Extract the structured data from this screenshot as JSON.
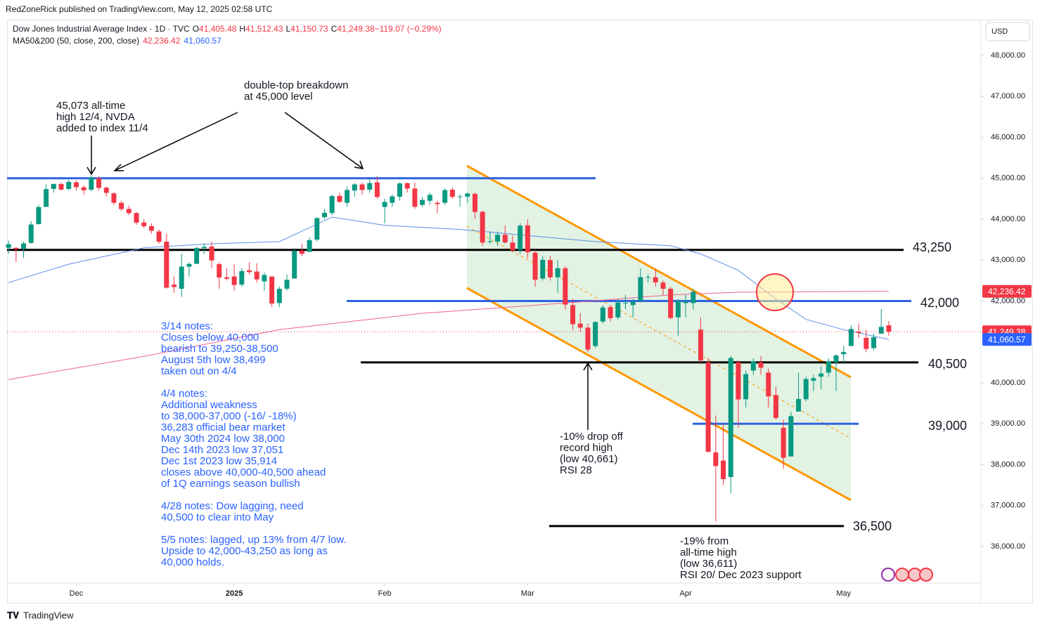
{
  "chart_data": {
    "type": "candlestick",
    "publisher": "RedZoneRick published on TradingView.com, May 12, 2025 02:58 UTC",
    "title": "Dow Jones Industrial Average Index · 1D · TVC",
    "legend_values": [
      {
        "key": "O",
        "text": "41,405.48"
      },
      {
        "key": "H",
        "text": "41,512.43"
      },
      {
        "key": "L",
        "text": "41,150.73"
      },
      {
        "key": "C",
        "text": "41,249.38"
      },
      {
        "key": "",
        "text": "−119.07 (−0.29%)"
      }
    ],
    "ma_legend": "MA50&200 (50, close, 200, close)",
    "ma_legend_values": [
      "42,236.42",
      "41,060.57"
    ],
    "currency": "USD",
    "brand": "TradingView",
    "up_color": "#089981",
    "down_color": "#f23645",
    "ohlc": [
      [
        43300,
        43480,
        43150,
        43390
      ],
      [
        43300,
        43320,
        42950,
        43268
      ],
      [
        43280,
        43450,
        43050,
        43408
      ],
      [
        43420,
        43950,
        43400,
        43870
      ],
      [
        43880,
        44350,
        43870,
        44296
      ],
      [
        44300,
        44850,
        44300,
        44736
      ],
      [
        44740,
        44870,
        44650,
        44860
      ],
      [
        44860,
        44900,
        44700,
        44722
      ],
      [
        44740,
        44960,
        44700,
        44910
      ],
      [
        44900,
        44950,
        44700,
        44782
      ],
      [
        44780,
        44830,
        44600,
        44705
      ],
      [
        44720,
        45073,
        44680,
        45014
      ],
      [
        45000,
        45050,
        44700,
        44765
      ],
      [
        44770,
        44800,
        44550,
        44643
      ],
      [
        44630,
        44660,
        44350,
        44401
      ],
      [
        44400,
        44450,
        44200,
        44247
      ],
      [
        44250,
        44330,
        44100,
        44148
      ],
      [
        44150,
        44170,
        43860,
        43914
      ],
      [
        43920,
        44000,
        43780,
        43828
      ],
      [
        43830,
        43900,
        43650,
        43717
      ],
      [
        43700,
        43750,
        43400,
        43449
      ],
      [
        43450,
        43650,
        42300,
        42326
      ],
      [
        42400,
        42600,
        42200,
        42342
      ],
      [
        42300,
        43150,
        42100,
        42840
      ],
      [
        42840,
        42950,
        42600,
        42906
      ],
      [
        42910,
        43320,
        42900,
        43297
      ],
      [
        43290,
        43400,
        43150,
        43325
      ],
      [
        43330,
        43450,
        42800,
        42992
      ],
      [
        42900,
        42950,
        42300,
        42573
      ],
      [
        42580,
        42800,
        42500,
        42544
      ],
      [
        42600,
        42900,
        42250,
        42392
      ],
      [
        42400,
        42800,
        42350,
        42732
      ],
      [
        42750,
        42950,
        42650,
        42706
      ],
      [
        42720,
        42920,
        42450,
        42528
      ],
      [
        42480,
        42700,
        42250,
        42635
      ],
      [
        42600,
        42600,
        41850,
        41938
      ],
      [
        41950,
        42350,
        41850,
        42297
      ],
      [
        42300,
        42650,
        42250,
        42518
      ],
      [
        42550,
        43300,
        42550,
        43221
      ],
      [
        43230,
        43400,
        43100,
        43153
      ],
      [
        43200,
        43550,
        43200,
        43487
      ],
      [
        43500,
        44050,
        43450,
        44025
      ],
      [
        44050,
        44250,
        44000,
        44156
      ],
      [
        44150,
        44600,
        44100,
        44565
      ],
      [
        44570,
        44650,
        44400,
        44424
      ],
      [
        44400,
        44800,
        44300,
        44713
      ],
      [
        44700,
        44880,
        44550,
        44850
      ],
      [
        44850,
        44900,
        44600,
        44713
      ],
      [
        44720,
        45000,
        44650,
        44882
      ],
      [
        44900,
        45050,
        44500,
        44544
      ],
      [
        44300,
        44500,
        43900,
        44421
      ],
      [
        44400,
        44600,
        44300,
        44556
      ],
      [
        44550,
        44900,
        44450,
        44873
      ],
      [
        44880,
        44900,
        44650,
        44747
      ],
      [
        44750,
        44900,
        44250,
        44303
      ],
      [
        44350,
        44550,
        44300,
        44470
      ],
      [
        44450,
        44650,
        44350,
        44593
      ],
      [
        44400,
        44450,
        44150,
        44368
      ],
      [
        44400,
        44750,
        44350,
        44711
      ],
      [
        44720,
        44780,
        44500,
        44546
      ],
      [
        44550,
        44600,
        44300,
        44556
      ],
      [
        44550,
        44650,
        44400,
        44627
      ],
      [
        44620,
        44650,
        44000,
        44176
      ],
      [
        44180,
        44200,
        43350,
        43428
      ],
      [
        43450,
        43700,
        43400,
        43461
      ],
      [
        43450,
        43700,
        43350,
        43621
      ],
      [
        43620,
        43850,
        43400,
        43433
      ],
      [
        43430,
        43600,
        43200,
        43239
      ],
      [
        43250,
        43900,
        43150,
        43841
      ],
      [
        43850,
        44000,
        43050,
        43191
      ],
      [
        43180,
        43250,
        42350,
        42520
      ],
      [
        42550,
        43100,
        42500,
        43006
      ],
      [
        43000,
        43100,
        42500,
        42579
      ],
      [
        42580,
        43000,
        42200,
        42802
      ],
      [
        42800,
        42850,
        41800,
        41912
      ],
      [
        41900,
        42050,
        41300,
        41433
      ],
      [
        41450,
        41700,
        41250,
        41350
      ],
      [
        41350,
        41450,
        40750,
        40813
      ],
      [
        40900,
        41500,
        40850,
        41488
      ],
      [
        41500,
        41900,
        41450,
        41841
      ],
      [
        41850,
        41900,
        41500,
        41581
      ],
      [
        41600,
        42050,
        41550,
        41964
      ],
      [
        41950,
        42150,
        41800,
        41953
      ],
      [
        41900,
        42050,
        41600,
        41985
      ],
      [
        42000,
        42800,
        42000,
        42583
      ],
      [
        42580,
        42650,
        42450,
        42587
      ],
      [
        42580,
        42800,
        42350,
        42455
      ],
      [
        42450,
        42500,
        42150,
        42300
      ],
      [
        42300,
        42350,
        41550,
        41584
      ],
      [
        41600,
        42050,
        41150,
        42002
      ],
      [
        41950,
        42150,
        41600,
        41989
      ],
      [
        41950,
        42300,
        41800,
        42226
      ],
      [
        41300,
        41600,
        40500,
        40546
      ],
      [
        40500,
        40600,
        38300,
        38315
      ],
      [
        38300,
        39200,
        36611,
        37966
      ],
      [
        38100,
        39000,
        37500,
        37646
      ],
      [
        37700,
        40663,
        37300,
        40608
      ],
      [
        40500,
        40550,
        38900,
        39594
      ],
      [
        39600,
        40300,
        39400,
        40213
      ],
      [
        40300,
        40600,
        40200,
        40525
      ],
      [
        40500,
        40650,
        40200,
        40369
      ],
      [
        40250,
        40350,
        39400,
        39669
      ],
      [
        39700,
        39900,
        39100,
        39142
      ],
      [
        38900,
        39100,
        37900,
        38170
      ],
      [
        38200,
        39300,
        38200,
        39187
      ],
      [
        39300,
        40250,
        39300,
        39607
      ],
      [
        39600,
        40150,
        39550,
        40093
      ],
      [
        40050,
        40200,
        39800,
        40114
      ],
      [
        40150,
        40400,
        39850,
        40228
      ],
      [
        40250,
        40600,
        40150,
        40527
      ],
      [
        40500,
        40700,
        39800,
        40669
      ],
      [
        40700,
        40900,
        40500,
        40753
      ],
      [
        40900,
        41400,
        40900,
        41317
      ],
      [
        41250,
        41450,
        41100,
        41219
      ],
      [
        41100,
        41300,
        40750,
        40829
      ],
      [
        40850,
        41200,
        40800,
        41114
      ],
      [
        41200,
        41800,
        41200,
        41368
      ],
      [
        41405.48,
        41512.43,
        41150.73,
        41249.38
      ]
    ],
    "series": [
      {
        "name": "MA50",
        "color": "#5b8ee6",
        "x": [
          0,
          8,
          18,
          27,
          36,
          43,
          50,
          60,
          69,
          78,
          88,
          92,
          97,
          102,
          106,
          111,
          117
        ],
        "values": [
          42450,
          42900,
          43300,
          43400,
          43450,
          44050,
          43850,
          43750,
          43600,
          43450,
          43350,
          43150,
          42750,
          42050,
          41550,
          41300,
          41060.57
        ]
      },
      {
        "name": "MA200",
        "color": "#f06292",
        "x": [
          0,
          18,
          36,
          55,
          74,
          88,
          97,
          117
        ],
        "values": [
          40080,
          40650,
          41300,
          41700,
          41950,
          42150,
          42215,
          42236.42
        ]
      }
    ],
    "levels": [
      {
        "value": 45000,
        "color": "#2e62e0"
      },
      {
        "value": 43250,
        "label": "43,250",
        "color": "#000000"
      },
      {
        "value": 42000,
        "label": "42,000",
        "color": "#2e62e0"
      },
      {
        "value": 40500,
        "label": "40,500",
        "color": "#000000"
      },
      {
        "value": 39000,
        "label": "39,000",
        "color": "#2e62e0"
      },
      {
        "value": 36500,
        "label": "36,500",
        "color": "#000000"
      }
    ],
    "price_labels": [
      {
        "value": 42236.42,
        "label": "42,236.42",
        "color": "#f23645"
      },
      {
        "value": 41249.38,
        "label": "41,249.38",
        "color": "#f23645"
      },
      {
        "value": 41060.57,
        "label": "41,060.57",
        "color": "#2962ff"
      }
    ],
    "xlim": [
      -0.2,
      129.25
    ],
    "xticks": [
      {
        "value": 9,
        "label": "Dec"
      },
      {
        "value": 30,
        "label": "2025"
      },
      {
        "value": 50,
        "label": "Feb"
      },
      {
        "value": 69,
        "label": "Mar"
      },
      {
        "value": 90,
        "label": "Apr"
      },
      {
        "value": 111,
        "label": "May"
      }
    ],
    "ylim": [
      35108,
      48841
    ],
    "yticks": [
      {
        "value": 36000,
        "label": "36,000.00"
      },
      {
        "value": 37000,
        "label": "37,000.00"
      },
      {
        "value": 38000,
        "label": "38,000.00"
      },
      {
        "value": 39000,
        "label": "39,000.00"
      },
      {
        "value": 40000,
        "label": "40,000.00"
      },
      {
        "value": 41000,
        "label": "41,000.00"
      },
      {
        "value": 42000,
        "label": "42,000.00"
      },
      {
        "value": 43000,
        "label": "43,000.00"
      },
      {
        "value": 44000,
        "label": "44,000.00"
      },
      {
        "value": 45000,
        "label": "45,000.00"
      },
      {
        "value": 46000,
        "label": "46,000.00"
      },
      {
        "value": 47000,
        "label": "47,000.00"
      },
      {
        "value": 48000,
        "label": "48,000.00"
      }
    ],
    "annotations": [
      {
        "lines": [
          "45,073 all-time",
          "high 12/4, NVDA",
          "added to index 11/4"
        ]
      },
      {
        "lines": [
          "double-top breakdown",
          "at 45,000 level"
        ]
      },
      {
        "lines": [
          "3/14 notes:",
          "Closes below 40,000",
          "bearish to 39,250-38,500",
          "August 5th low 38,499",
          "taken out on 4/4"
        ],
        "color": "#2962ff"
      },
      {
        "lines": [
          "4/4 notes:",
          "Additional weakness",
          "to 38,000-37,000 (-16/ -18%)",
          "36,283 official bear market",
          "May 30th 2024 low 38,000",
          "Dec 14th 2023 low 37,051",
          "Dec 1st 2023 low 35,914",
          "closes above 40,000-40,500 ahead",
          "of 1Q earnings season bullish"
        ],
        "color": "#2962ff"
      },
      {
        "lines": [
          "4/28 notes: Dow lagging, need",
          "40,500 to clear into May"
        ],
        "color": "#2962ff"
      },
      {
        "lines": [
          "5/5 notes: lagged, up 13% from 4/7 low.",
          "Upside to 42,000-43,250 as long as",
          "40,000 holds."
        ],
        "color": "#2962ff"
      },
      {
        "lines": [
          "-10% drop off",
          "record high",
          "(low 40,661)",
          "RSI 28"
        ]
      },
      {
        "lines": [
          "-19% from",
          "all-time high",
          "(low 36,611)",
          "RSI 20/ Dec 2023 support"
        ]
      }
    ]
  }
}
